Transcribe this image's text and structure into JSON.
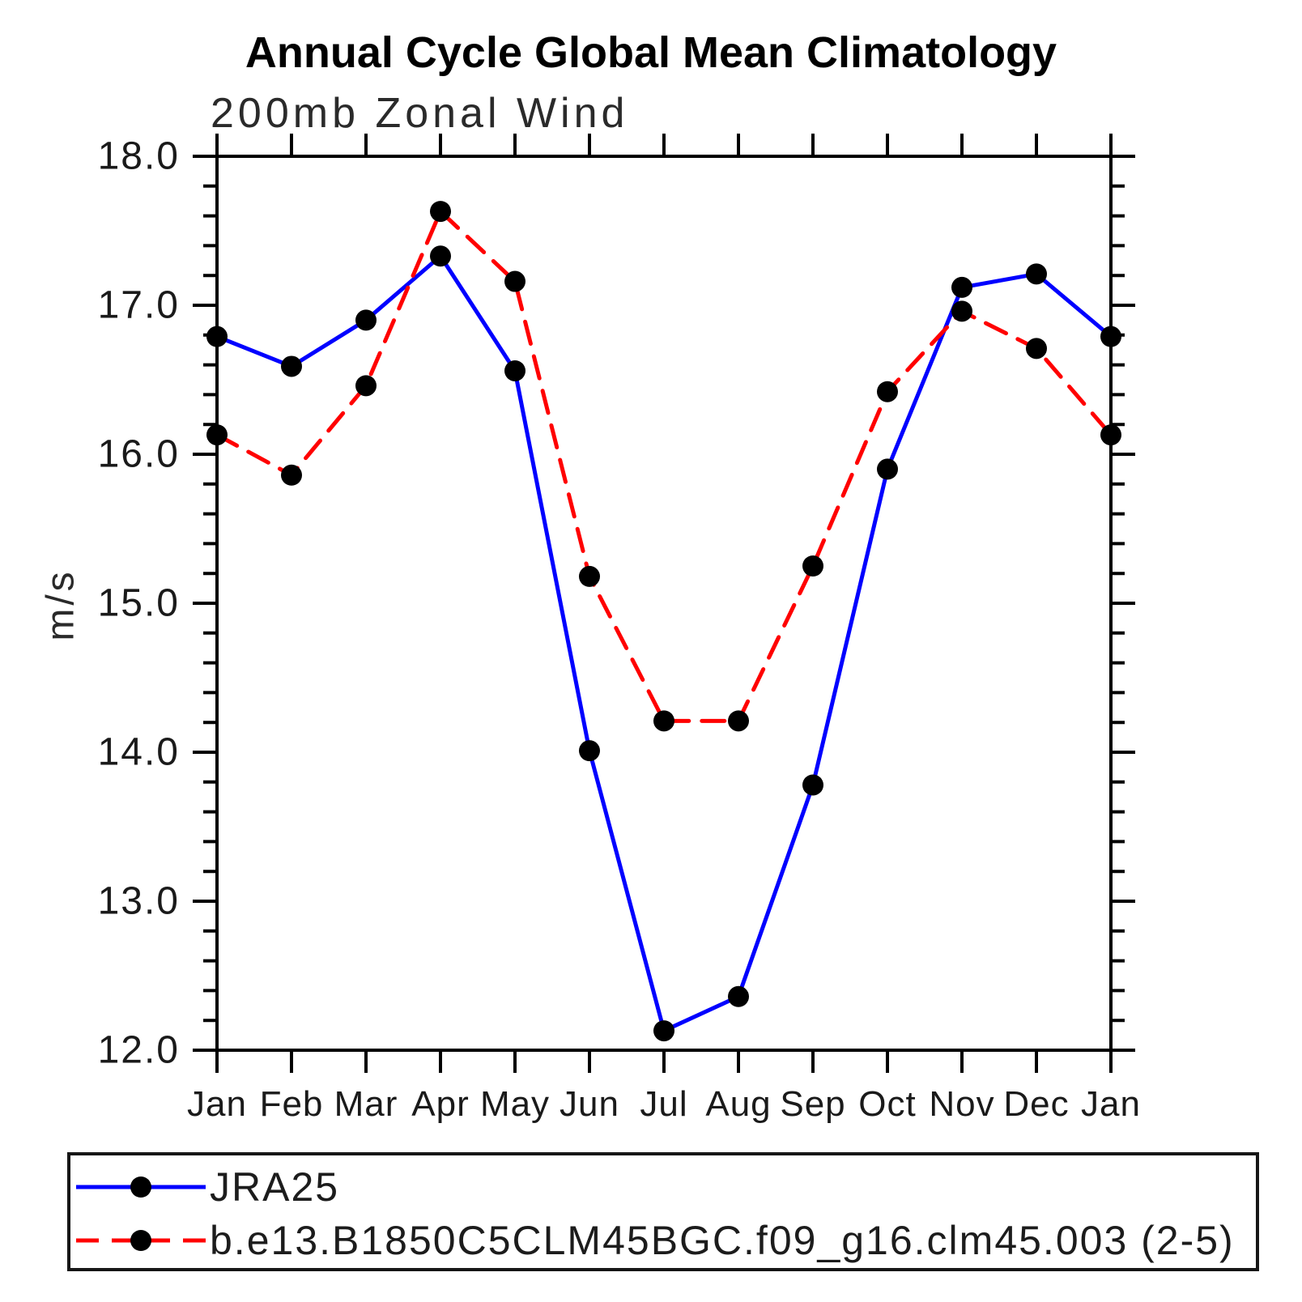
{
  "title": "Annual Cycle Global Mean Climatology",
  "subtitle": "200mb Zonal Wind",
  "chart_data": {
    "type": "line",
    "title": "Annual Cycle Global Mean Climatology",
    "subtitle": "200mb Zonal Wind",
    "xlabel": "",
    "ylabel": "m/s",
    "categories": [
      "Jan",
      "Feb",
      "Mar",
      "Apr",
      "May",
      "Jun",
      "Jul",
      "Aug",
      "Sep",
      "Oct",
      "Nov",
      "Dec",
      "Jan"
    ],
    "ylim": [
      12.0,
      18.0
    ],
    "ytick_interval": 1.0,
    "yminor_interval": 0.2,
    "ytick_labels": [
      "12.0",
      "13.0",
      "14.0",
      "15.0",
      "16.0",
      "17.0",
      "18.0"
    ],
    "grid": false,
    "legend_position": "bottom",
    "series": [
      {
        "name": "JRA25",
        "color": "#0000ff",
        "style": "solid",
        "marker": "circle",
        "marker_color": "#000000",
        "values": [
          16.79,
          16.59,
          16.9,
          17.33,
          16.56,
          14.01,
          12.13,
          12.36,
          13.78,
          15.9,
          17.12,
          17.21,
          16.79
        ]
      },
      {
        "name": "b.e13.B1850C5CLM45BGC.f09_g16.clm45.003 (2-5)",
        "color": "#ff0000",
        "style": "dashed",
        "marker": "circle",
        "marker_color": "#000000",
        "values": [
          16.13,
          15.86,
          16.46,
          17.63,
          17.16,
          15.18,
          14.21,
          14.21,
          15.25,
          16.42,
          16.96,
          16.71,
          16.13
        ]
      }
    ]
  }
}
